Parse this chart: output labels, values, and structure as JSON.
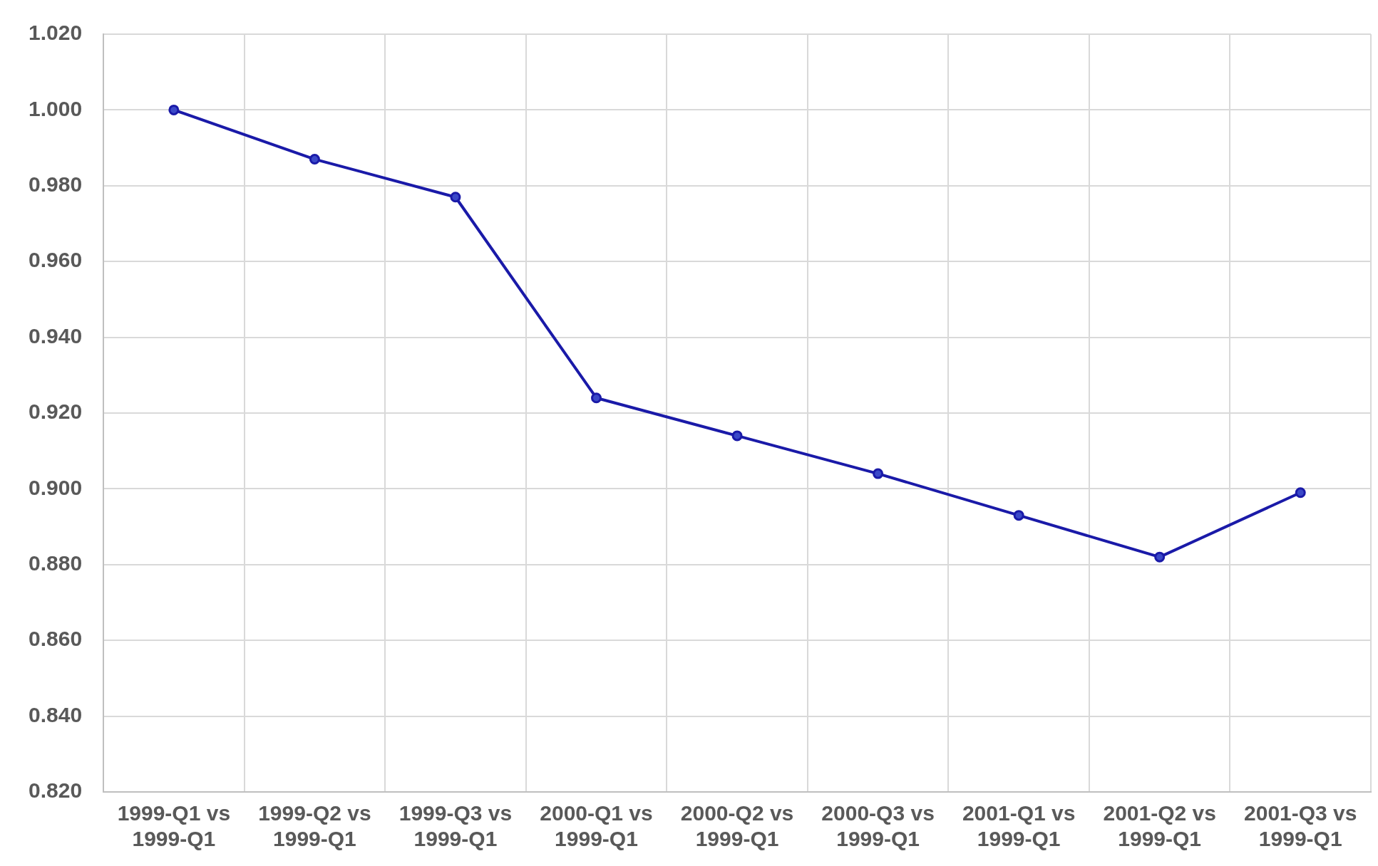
{
  "chart_data": {
    "type": "line",
    "categories": [
      "1999-Q1 vs 1999-Q1",
      "1999-Q2 vs 1999-Q1",
      "1999-Q3 vs 1999-Q1",
      "2000-Q1 vs 1999-Q1",
      "2000-Q2 vs 1999-Q1",
      "2000-Q3 vs 1999-Q1",
      "2001-Q1 vs 1999-Q1",
      "2001-Q2 vs 1999-Q1",
      "2001-Q3 vs 1999-Q1"
    ],
    "series": [
      {
        "color": "#1a1aa8",
        "values": [
          1.0,
          0.987,
          0.977,
          0.924,
          0.914,
          0.904,
          0.893,
          0.882,
          0.899
        ]
      }
    ],
    "ylim": [
      0.82,
      1.02
    ],
    "yticks": [
      {
        "value": 0.82,
        "label": "0.820"
      },
      {
        "value": 0.84,
        "label": "0.840"
      },
      {
        "value": 0.86,
        "label": "0.860"
      },
      {
        "value": 0.88,
        "label": "0.880"
      },
      {
        "value": 0.9,
        "label": "0.900"
      },
      {
        "value": 0.92,
        "label": "0.920"
      },
      {
        "value": 0.94,
        "label": "0.940"
      },
      {
        "value": 0.96,
        "label": "0.960"
      },
      {
        "value": 0.98,
        "label": "0.980"
      },
      {
        "value": 1.0,
        "label": "1.000"
      },
      {
        "value": 1.02,
        "label": "1.020"
      }
    ],
    "grid": true,
    "legend": false,
    "marker": "circle",
    "line_style": "solid"
  }
}
